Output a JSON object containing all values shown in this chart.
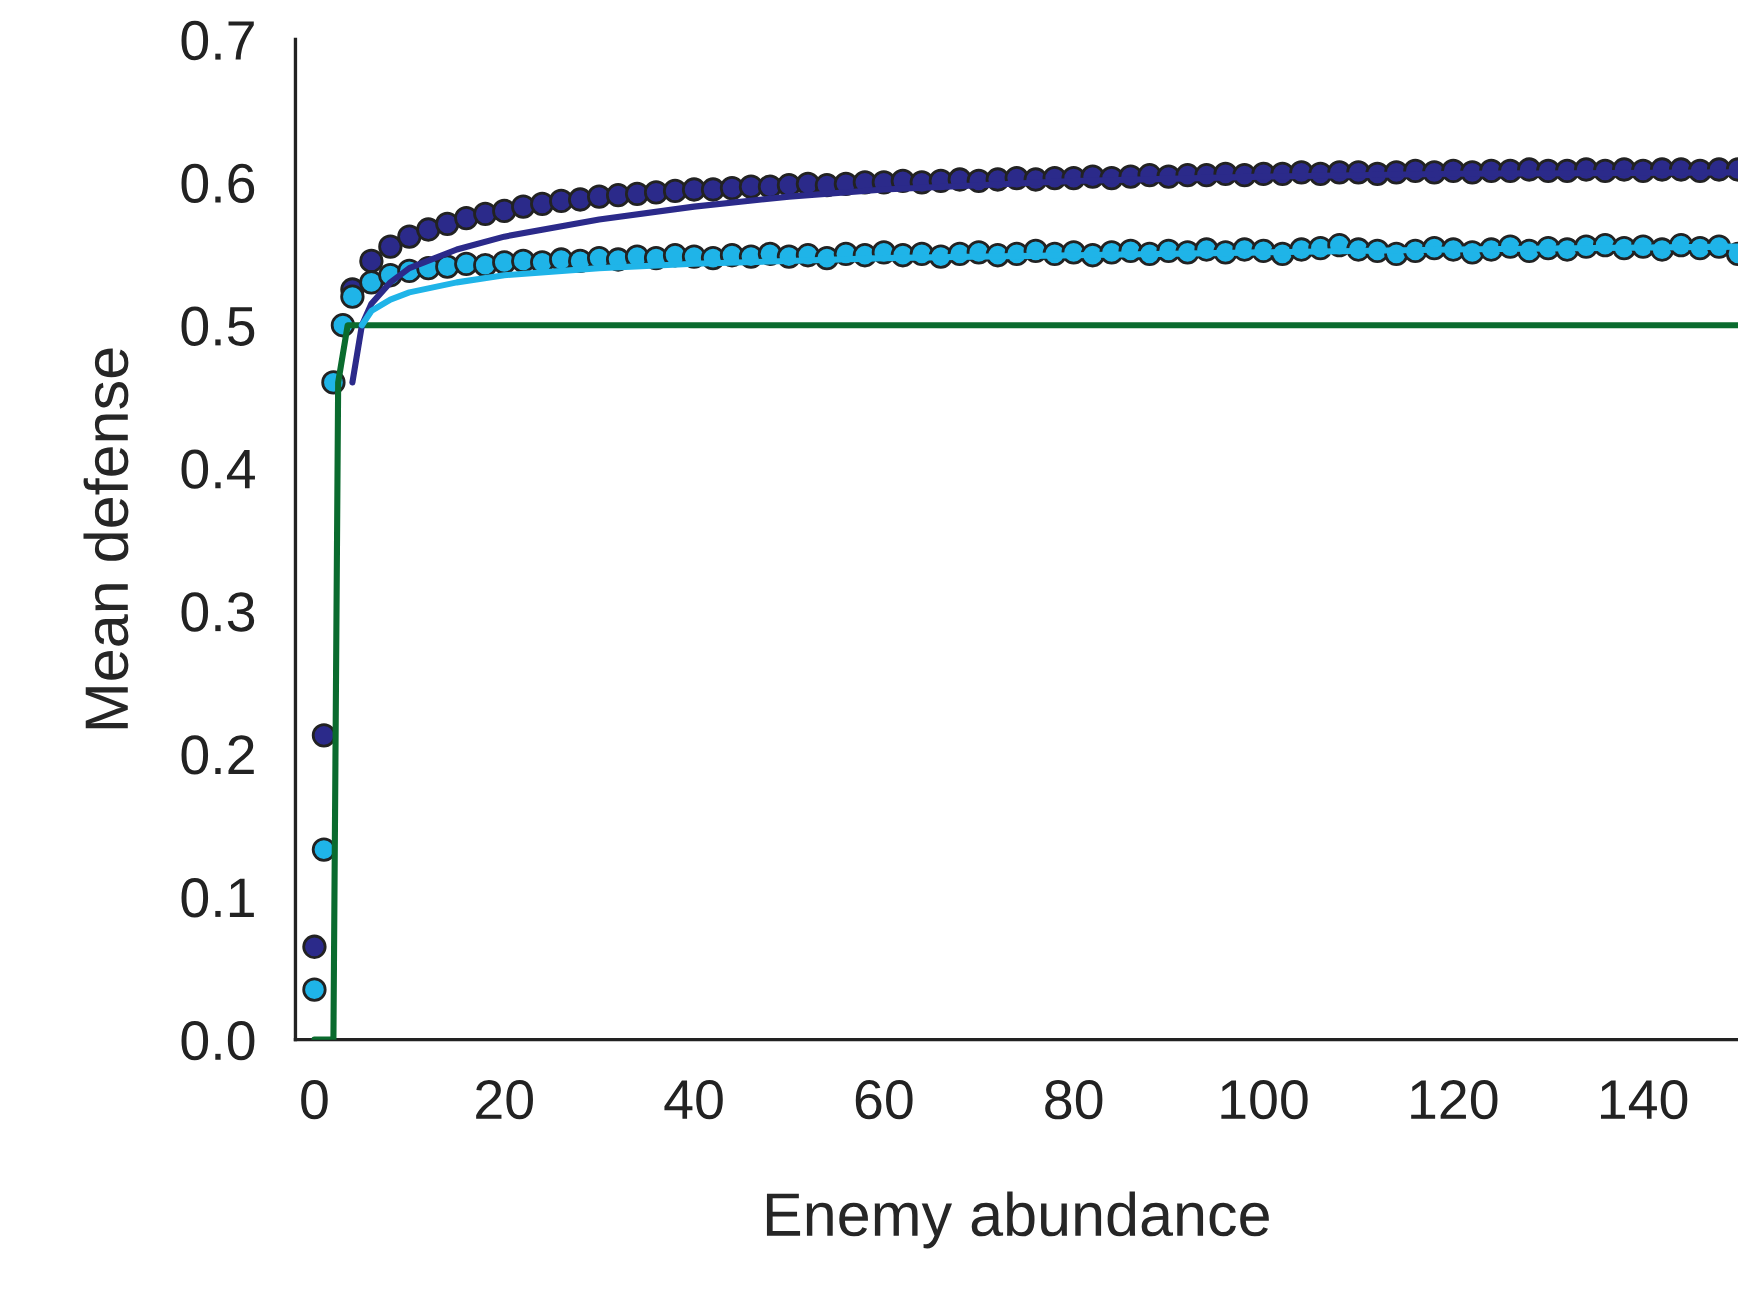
{
  "chart_data": {
    "type": "scatter",
    "xlabel": "Enemy abundance",
    "ylabel": "Mean defense",
    "xlim": [
      -2,
      150
    ],
    "ylim": [
      0,
      0.7
    ],
    "xticks": [
      0,
      20,
      40,
      60,
      80,
      100,
      120,
      140
    ],
    "yticks": [
      {
        "value": 0,
        "label": "0.0"
      },
      {
        "value": 0.1,
        "label": "0.1"
      },
      {
        "value": 0.2,
        "label": "0.2"
      },
      {
        "value": 0.3,
        "label": "0.3"
      },
      {
        "value": 0.4,
        "label": "0.4"
      },
      {
        "value": 0.5,
        "label": "0.5"
      },
      {
        "value": 0.6,
        "label": "0.6"
      },
      {
        "value": 0.7,
        "label": "0.7"
      }
    ],
    "grid": false,
    "marker": "circle",
    "series": [
      {
        "type": "line",
        "color": "#0a6b2e",
        "marker": "none",
        "x": [
          0,
          2,
          2.5,
          3.5,
          150
        ],
        "values": [
          0,
          0,
          0.46,
          0.5,
          0.5
        ]
      },
      {
        "type": "line",
        "color": "#2b2a8a",
        "marker": "none",
        "x": [
          4,
          5,
          6,
          8,
          10,
          15,
          20,
          30,
          40,
          50,
          60,
          70,
          80,
          100,
          120,
          150
        ],
        "values": [
          0.46,
          0.5,
          0.515,
          0.53,
          0.54,
          0.553,
          0.562,
          0.574,
          0.583,
          0.59,
          0.595,
          0.598,
          0.601,
          0.604,
          0.606,
          0.607
        ]
      },
      {
        "type": "line",
        "color": "#1fb4e8",
        "marker": "none",
        "x": [
          5,
          6,
          8,
          10,
          15,
          20,
          30,
          40,
          60,
          80,
          100,
          120,
          150
        ],
        "values": [
          0.5,
          0.51,
          0.518,
          0.523,
          0.53,
          0.535,
          0.54,
          0.543,
          0.547,
          0.549,
          0.551,
          0.553,
          0.555
        ]
      },
      {
        "color": "#2b2a8a",
        "x": [
          0,
          1,
          4,
          6,
          8,
          10,
          12,
          14,
          16,
          18,
          20,
          22,
          24,
          26,
          28,
          30,
          32,
          34,
          36,
          38,
          40,
          42,
          44,
          46,
          48,
          50,
          52,
          54,
          56,
          58,
          60,
          62,
          64,
          66,
          68,
          70,
          72,
          74,
          76,
          78,
          80,
          82,
          84,
          86,
          88,
          90,
          92,
          94,
          96,
          98,
          100,
          102,
          104,
          106,
          108,
          110,
          112,
          114,
          116,
          118,
          120,
          122,
          124,
          126,
          128,
          130,
          132,
          134,
          136,
          138,
          140,
          142,
          144,
          146,
          148,
          150
        ],
        "values": [
          0.065,
          0.213,
          0.525,
          0.545,
          0.555,
          0.562,
          0.567,
          0.571,
          0.575,
          0.578,
          0.58,
          0.583,
          0.585,
          0.587,
          0.588,
          0.59,
          0.591,
          0.592,
          0.593,
          0.594,
          0.595,
          0.595,
          0.596,
          0.597,
          0.597,
          0.598,
          0.599,
          0.598,
          0.599,
          0.6,
          0.6,
          0.601,
          0.6,
          0.601,
          0.602,
          0.601,
          0.602,
          0.603,
          0.602,
          0.603,
          0.603,
          0.604,
          0.603,
          0.604,
          0.605,
          0.604,
          0.605,
          0.605,
          0.606,
          0.605,
          0.606,
          0.606,
          0.607,
          0.606,
          0.607,
          0.607,
          0.606,
          0.607,
          0.608,
          0.607,
          0.608,
          0.607,
          0.608,
          0.608,
          0.609,
          0.608,
          0.608,
          0.609,
          0.608,
          0.609,
          0.608,
          0.609,
          0.609,
          0.608,
          0.609,
          0.609
        ]
      },
      {
        "color": "#1fb4e8",
        "x": [
          0,
          1,
          2,
          3,
          4,
          6,
          8,
          10,
          12,
          14,
          16,
          18,
          20,
          22,
          24,
          26,
          28,
          30,
          32,
          34,
          36,
          38,
          40,
          42,
          44,
          46,
          48,
          50,
          52,
          54,
          56,
          58,
          60,
          62,
          64,
          66,
          68,
          70,
          72,
          74,
          76,
          78,
          80,
          82,
          84,
          86,
          88,
          90,
          92,
          94,
          96,
          98,
          100,
          102,
          104,
          106,
          108,
          110,
          112,
          114,
          116,
          118,
          120,
          122,
          124,
          126,
          128,
          130,
          132,
          134,
          136,
          138,
          140,
          142,
          144,
          146,
          148,
          150
        ],
        "values": [
          0.035,
          0.133,
          0.46,
          0.5,
          0.52,
          0.53,
          0.535,
          0.538,
          0.54,
          0.541,
          0.543,
          0.542,
          0.544,
          0.545,
          0.544,
          0.546,
          0.545,
          0.547,
          0.546,
          0.548,
          0.547,
          0.549,
          0.548,
          0.547,
          0.549,
          0.548,
          0.55,
          0.548,
          0.549,
          0.547,
          0.55,
          0.549,
          0.551,
          0.549,
          0.55,
          0.548,
          0.55,
          0.551,
          0.549,
          0.55,
          0.552,
          0.55,
          0.551,
          0.549,
          0.551,
          0.552,
          0.55,
          0.552,
          0.551,
          0.553,
          0.551,
          0.553,
          0.552,
          0.55,
          0.553,
          0.554,
          0.556,
          0.553,
          0.552,
          0.55,
          0.552,
          0.554,
          0.553,
          0.551,
          0.553,
          0.555,
          0.552,
          0.554,
          0.553,
          0.555,
          0.556,
          0.554,
          0.555,
          0.553,
          0.556,
          0.554,
          0.555,
          0.55
        ]
      }
    ]
  }
}
